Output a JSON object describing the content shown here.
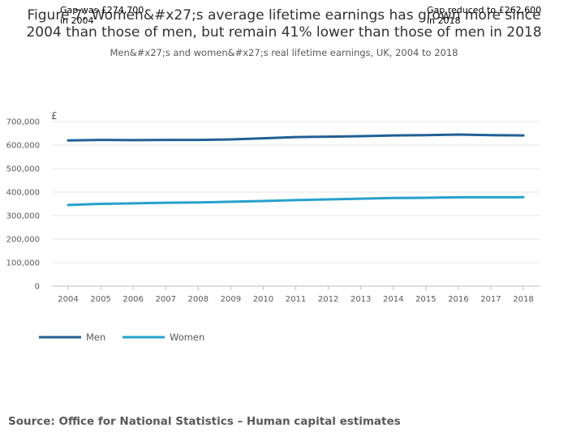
{
  "chart_data": {
    "type": "line",
    "title_lines": [
      "Figure 7: Women&#x27;s average lifetime earnings has grown more since",
      "2004 than those of men, but remain 41% lower than those of men in 2018"
    ],
    "subtitle": "Men&#x27;s and women&#x27;s real lifetime earnings, UK, 2004 to 2018",
    "y_unit_label": "£",
    "x": [
      "2004",
      "2005",
      "2006",
      "2007",
      "2008",
      "2009",
      "2010",
      "2011",
      "2012",
      "2013",
      "2014",
      "2015",
      "2016",
      "2017",
      "2018"
    ],
    "ylim": [
      0,
      700000
    ],
    "yticks": [
      0,
      100000,
      200000,
      300000,
      400000,
      500000,
      600000,
      700000
    ],
    "ytick_labels": [
      "0",
      "100,000",
      "200,000",
      "300,000",
      "400,000",
      "500,000",
      "600,000",
      "700,000"
    ],
    "series": [
      {
        "name": "Men",
        "color": "#206095",
        "values": [
          620000,
          622000,
          621000,
          622000,
          622000,
          624000,
          629000,
          634000,
          636000,
          638000,
          641000,
          642000,
          645000,
          642000,
          641000
        ]
      },
      {
        "name": "Women",
        "color": "#27a0cc",
        "values": [
          345300,
          350000,
          352000,
          355000,
          356000,
          359000,
          362000,
          366000,
          369000,
          372000,
          375000,
          376000,
          378000,
          378000,
          378400
        ]
      }
    ],
    "annotations": [
      {
        "lines": [
          "Gap was £274,700",
          "in 2004"
        ],
        "x": "2004"
      },
      {
        "lines": [
          "Gap reduced to £262,600",
          "in 2018"
        ],
        "x": "2018"
      }
    ],
    "legend": [
      "Men",
      "Women"
    ],
    "grid": true
  },
  "source": "Source: Office for National Statistics – Human capital estimates"
}
